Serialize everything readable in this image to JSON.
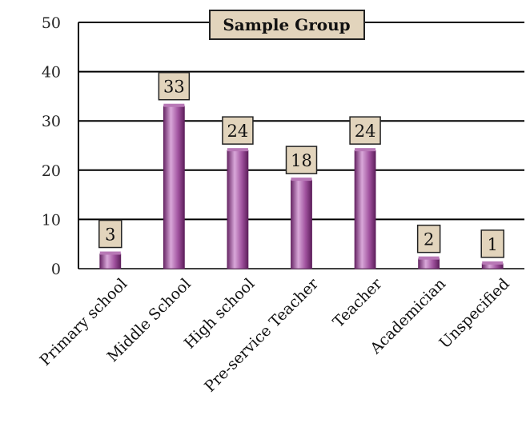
{
  "chart_data": {
    "type": "bar",
    "title": "Sample Group",
    "categories": [
      "Primary school",
      "Middle School",
      "High school",
      "Pre-service Teacher",
      "Teacher",
      "Academician",
      "Unspecified"
    ],
    "values": [
      3,
      33,
      24,
      18,
      24,
      2,
      1
    ],
    "data_labels": [
      "3",
      "33",
      "24",
      "18",
      "24",
      "2",
      "1"
    ],
    "yticks": [
      "0",
      "10",
      "20",
      "30",
      "40",
      "50"
    ],
    "ylim": [
      0,
      50
    ],
    "xlabel": "",
    "ylabel": "",
    "grid": true,
    "legend": "none"
  },
  "colors": {
    "bar_light": "#d9a8d9",
    "bar_mid": "#a0529e",
    "bar_dark": "#5e1f5c",
    "bar_top": "#b878b6",
    "label_fill": "#e2d4bc",
    "label_border": "#222222",
    "grid": "#000000"
  }
}
